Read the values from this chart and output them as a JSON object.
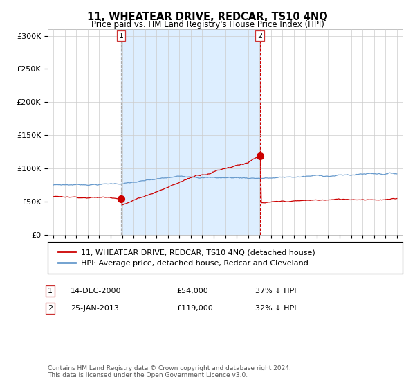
{
  "title": "11, WHEATEAR DRIVE, REDCAR, TS10 4NQ",
  "subtitle": "Price paid vs. HM Land Registry's House Price Index (HPI)",
  "ylabel_ticks": [
    "£0",
    "£50K",
    "£100K",
    "£150K",
    "£200K",
    "£250K",
    "£300K"
  ],
  "ytick_vals": [
    0,
    50000,
    100000,
    150000,
    200000,
    250000,
    300000
  ],
  "ylim": [
    0,
    310000
  ],
  "sale1_yr": 2000.917,
  "sale1_price": 54000,
  "sale2_yr": 2013.042,
  "sale2_price": 119000,
  "legend_entries": [
    "11, WHEATEAR DRIVE, REDCAR, TS10 4NQ (detached house)",
    "HPI: Average price, detached house, Redcar and Cleveland"
  ],
  "footnote": "Contains HM Land Registry data © Crown copyright and database right 2024.\nThis data is licensed under the Open Government Licence v3.0.",
  "red_color": "#cc0000",
  "blue_color": "#6699cc",
  "shade_color": "#ddeeff",
  "background_color": "#ffffff",
  "grid_color": "#cccccc"
}
